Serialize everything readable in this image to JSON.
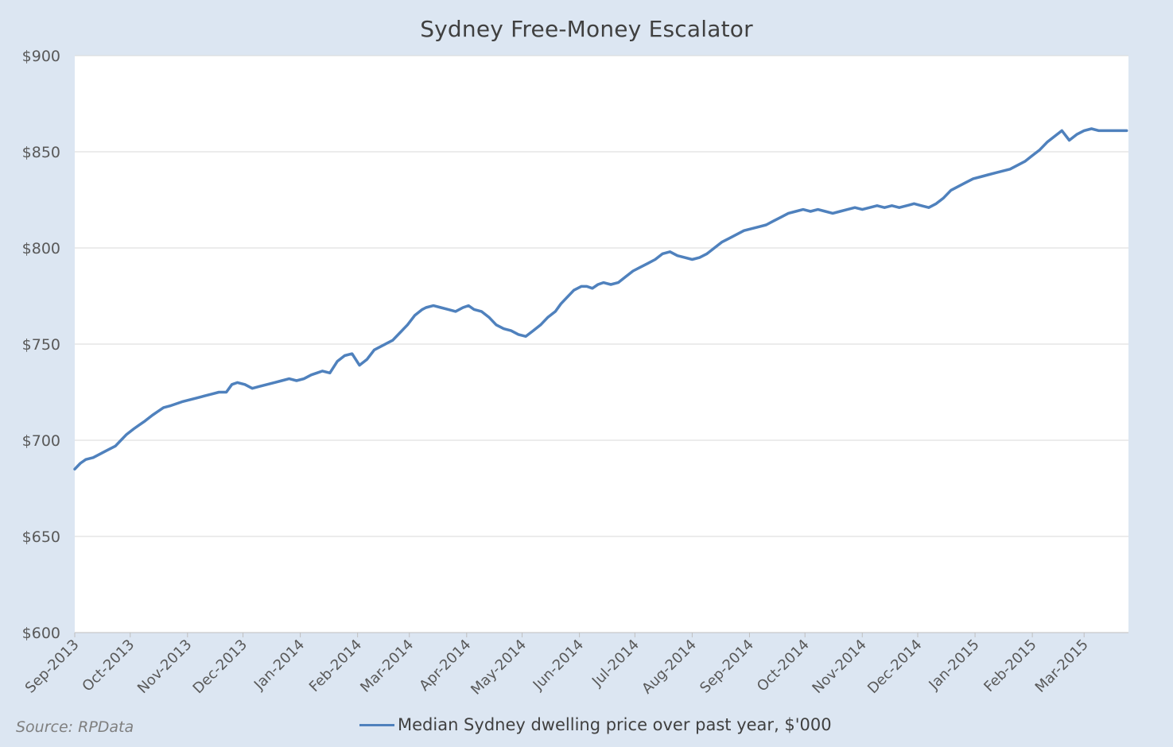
{
  "chart_data": {
    "type": "line",
    "title": "Sydney Free-Money Escalator",
    "source": "Source: RPData",
    "xlabel": "",
    "ylabel": "",
    "ylim": [
      600,
      900
    ],
    "y_ticks": [
      "$600",
      "$650",
      "$700",
      "$750",
      "$800",
      "$850",
      "$900"
    ],
    "y_tick_values": [
      600,
      650,
      700,
      750,
      800,
      850,
      900
    ],
    "x_ticks": [
      "Sep-2013",
      "Oct-2013",
      "Nov-2013",
      "Dec-2013",
      "Jan-2014",
      "Feb-2014",
      "Mar-2014",
      "Apr-2014",
      "May-2014",
      "Jun-2014",
      "Jul-2014",
      "Aug-2014",
      "Sep-2014",
      "Oct-2014",
      "Nov-2014",
      "Dec-2014",
      "Jan-2015",
      "Feb-2015",
      "Mar-2015"
    ],
    "x_range_days": [
      0,
      570
    ],
    "grid": true,
    "legend_position": "bottom",
    "colors": {
      "series": "#4f81bd",
      "background": "#dce6f2",
      "plot": "#ffffff",
      "grid": "#d9d9d9"
    },
    "series": [
      {
        "name": "Median Sydney dwelling price over past year, $'000",
        "x_day": [
          0,
          3,
          6,
          10,
          14,
          18,
          22,
          25,
          28,
          32,
          35,
          38,
          42,
          45,
          48,
          52,
          55,
          58,
          62,
          66,
          70,
          74,
          78,
          82,
          85,
          88,
          92,
          96,
          100,
          104,
          108,
          112,
          116,
          120,
          124,
          128,
          131,
          134,
          138,
          142,
          146,
          150,
          154,
          158,
          162,
          166,
          170,
          172,
          176,
          180,
          184,
          188,
          190,
          194,
          198,
          202,
          206,
          210,
          213,
          216,
          220,
          224,
          228,
          232,
          236,
          240,
          244,
          248,
          252,
          256,
          260,
          263,
          266,
          270,
          274,
          277,
          280,
          283,
          286,
          290,
          294,
          298,
          302,
          306,
          310,
          314,
          318,
          322,
          326,
          330,
          334,
          338,
          342,
          346,
          350,
          354,
          358,
          362,
          366,
          370,
          374,
          378,
          382,
          386,
          390,
          394,
          398,
          402,
          406,
          410,
          414,
          418,
          422,
          426,
          430,
          434,
          438,
          442,
          446,
          450,
          454,
          458,
          462,
          466,
          470,
          474,
          478,
          482,
          486,
          490,
          494,
          498,
          502,
          506,
          510,
          514,
          518,
          522,
          526,
          530,
          534,
          538,
          542,
          546,
          550,
          554,
          558,
          562,
          566,
          569
        ],
        "values": [
          685,
          688,
          690,
          691,
          693,
          695,
          697,
          700,
          703,
          706,
          708,
          710,
          713,
          715,
          717,
          718,
          719,
          720,
          721,
          722,
          723,
          724,
          725,
          725,
          729,
          730,
          729,
          727,
          728,
          729,
          730,
          731,
          732,
          731,
          732,
          734,
          735,
          736,
          735,
          741,
          744,
          745,
          739,
          742,
          747,
          749,
          751,
          752,
          756,
          760,
          765,
          768,
          769,
          770,
          769,
          768,
          767,
          769,
          770,
          768,
          767,
          764,
          760,
          758,
          757,
          755,
          754,
          757,
          760,
          764,
          767,
          771,
          774,
          778,
          780,
          780,
          779,
          781,
          782,
          781,
          782,
          785,
          788,
          790,
          792,
          794,
          797,
          798,
          796,
          795,
          794,
          795,
          797,
          800,
          803,
          805,
          807,
          809,
          810,
          811,
          812,
          814,
          816,
          818,
          819,
          820,
          819,
          820,
          819,
          818,
          819,
          820,
          821,
          820,
          821,
          822,
          821,
          822,
          821,
          822,
          823,
          822,
          821,
          823,
          826,
          830,
          832,
          834,
          836,
          837,
          838,
          839,
          840,
          841,
          843,
          845,
          848,
          851,
          855,
          858,
          861,
          856,
          859,
          861,
          862,
          861,
          861,
          861,
          861,
          861
        ],
        "color": "#4f81bd"
      }
    ]
  }
}
